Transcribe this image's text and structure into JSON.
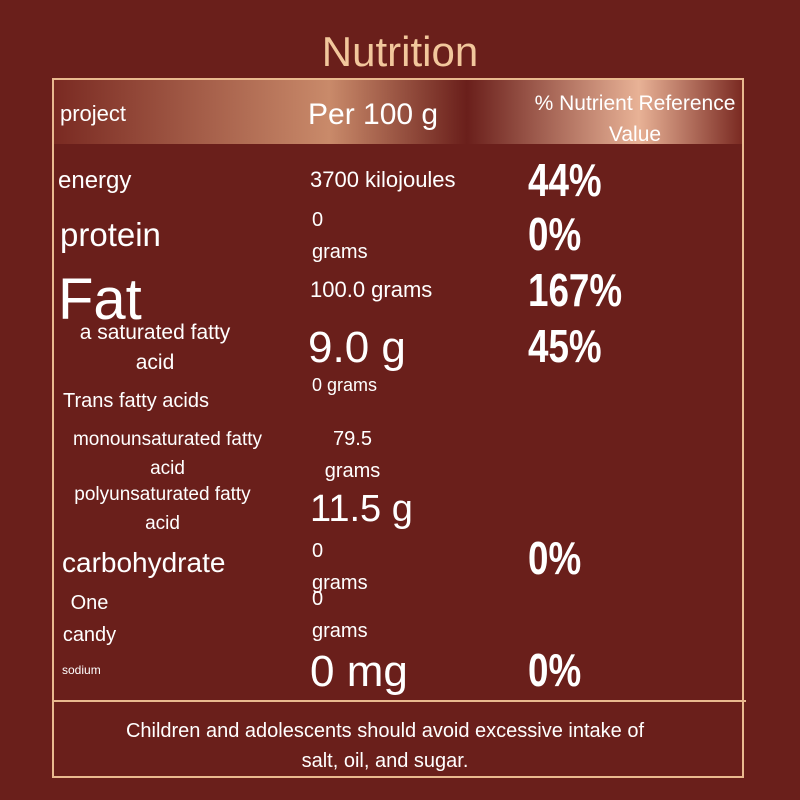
{
  "header": {
    "title": "Nutrition",
    "columns": [
      "project",
      "Per 100 g",
      "% Nutrient Reference Value"
    ]
  },
  "table": {
    "rows": [
      {
        "name": "energy",
        "amount": "3700 kilojoules",
        "nrv": "44%"
      },
      {
        "name": "protein",
        "amount": "0 grams",
        "nrv": "0%"
      },
      {
        "name": "Fat",
        "amount": "100.0 grams",
        "nrv": "167%"
      },
      {
        "name": "a saturated fatty acid",
        "amount": "9.0 g",
        "nrv": "45%"
      },
      {
        "name": "Trans fatty acids",
        "amount": "0 grams"
      },
      {
        "name": "monounsaturated fatty acid",
        "amount": "79.5 grams"
      },
      {
        "name": "polyunsaturated fatty acid",
        "amount": "11.5 g"
      },
      {
        "name": "carbohydrate",
        "amount": "0 grams",
        "nrv": "0%"
      },
      {
        "name": "One candy",
        "amount": "0 grams"
      },
      {
        "name": "sodium",
        "amount": "0 mg",
        "nrv": "0%"
      }
    ]
  },
  "footer": {
    "note": "Children and adolescents should avoid excessive intake of salt, oil, and sugar."
  }
}
